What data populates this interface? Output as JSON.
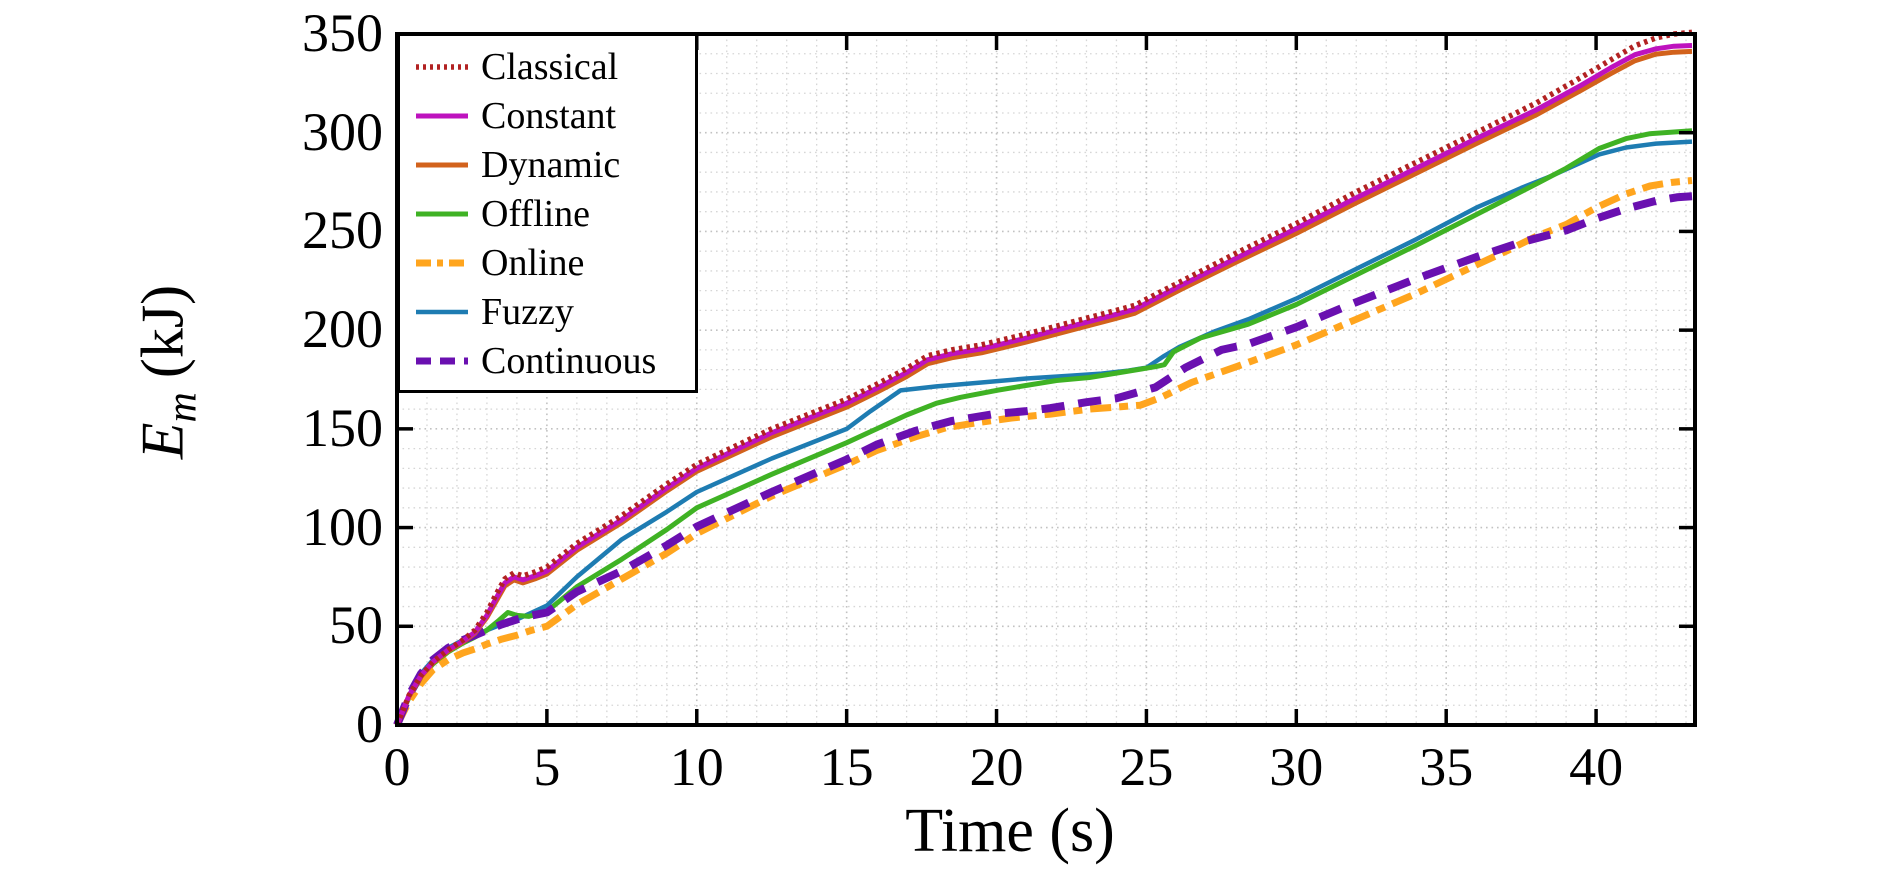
{
  "chart_data": {
    "type": "line",
    "title": "",
    "xlabel": "Time (s)",
    "ylabel_var": "E",
    "ylabel_sub": "m",
    "ylabel_unit": "(kJ)",
    "xlim": [
      0,
      43.3
    ],
    "ylim": [
      0,
      350
    ],
    "xticks": [
      0,
      5,
      10,
      15,
      20,
      25,
      30,
      35,
      40
    ],
    "yticks": [
      0,
      50,
      100,
      150,
      200,
      250,
      300,
      350
    ],
    "x_minor_step": 1,
    "y_minor_step": 10,
    "grid": "dotted",
    "legend_position": "top-left",
    "draw_order": [
      "Fuzzy",
      "Offline",
      "Online",
      "Continuous",
      "Dynamic",
      "Constant",
      "Classical"
    ],
    "series": [
      {
        "name": "Classical",
        "color": "#B22222",
        "style": "dotted",
        "width": 5.5,
        "points": [
          [
            0,
            0
          ],
          [
            0.4,
            15
          ],
          [
            0.8,
            25
          ],
          [
            1.2,
            32
          ],
          [
            1.7,
            38
          ],
          [
            2.2,
            43
          ],
          [
            2.6,
            48
          ],
          [
            3,
            57
          ],
          [
            3.3,
            66
          ],
          [
            3.6,
            74
          ],
          [
            3.9,
            77
          ],
          [
            4.2,
            75.5
          ],
          [
            4.6,
            77.5
          ],
          [
            5,
            80
          ],
          [
            6,
            92
          ],
          [
            7.5,
            106
          ],
          [
            9,
            122
          ],
          [
            10,
            132
          ],
          [
            12.5,
            150
          ],
          [
            15,
            165
          ],
          [
            16,
            172.5
          ],
          [
            17,
            180.5
          ],
          [
            17.7,
            187
          ],
          [
            18.5,
            190
          ],
          [
            19.5,
            192.5
          ],
          [
            21,
            198
          ],
          [
            22.5,
            204
          ],
          [
            24,
            210
          ],
          [
            24.6,
            212.5
          ],
          [
            25.3,
            218
          ],
          [
            26.2,
            225
          ],
          [
            28,
            239
          ],
          [
            30,
            254
          ],
          [
            32,
            270
          ],
          [
            34,
            285
          ],
          [
            36,
            300
          ],
          [
            38,
            315
          ],
          [
            39.5,
            328
          ],
          [
            40.5,
            337
          ],
          [
            41.3,
            344
          ],
          [
            42,
            348
          ],
          [
            42.6,
            350
          ],
          [
            43.2,
            350.8
          ]
        ]
      },
      {
        "name": "Constant",
        "color": "#BE12BE",
        "style": "solid",
        "width": 5,
        "points": [
          [
            0,
            0
          ],
          [
            0.4,
            15
          ],
          [
            0.8,
            25
          ],
          [
            1.2,
            32
          ],
          [
            1.7,
            38
          ],
          [
            2.2,
            42.5
          ],
          [
            2.6,
            47
          ],
          [
            3,
            55.5
          ],
          [
            3.3,
            64
          ],
          [
            3.6,
            72
          ],
          [
            3.9,
            75
          ],
          [
            4.2,
            73.5
          ],
          [
            4.6,
            75.5
          ],
          [
            5,
            78
          ],
          [
            6,
            90
          ],
          [
            7.5,
            104
          ],
          [
            9,
            120
          ],
          [
            10,
            130
          ],
          [
            12.5,
            148
          ],
          [
            15,
            163
          ],
          [
            16,
            170.5
          ],
          [
            17,
            178.5
          ],
          [
            17.7,
            185
          ],
          [
            18.5,
            188
          ],
          [
            19.5,
            190.5
          ],
          [
            21,
            196
          ],
          [
            22.5,
            202
          ],
          [
            24,
            208
          ],
          [
            24.6,
            210.5
          ],
          [
            25.3,
            216
          ],
          [
            26.2,
            223
          ],
          [
            28,
            236.5
          ],
          [
            30,
            251.5
          ],
          [
            32,
            267
          ],
          [
            34,
            282
          ],
          [
            36,
            297
          ],
          [
            38,
            311.5
          ],
          [
            39.5,
            324
          ],
          [
            40.5,
            333
          ],
          [
            41.3,
            339.5
          ],
          [
            42,
            342.5
          ],
          [
            42.6,
            343.8
          ],
          [
            43.2,
            344.2
          ]
        ]
      },
      {
        "name": "Dynamic",
        "color": "#D2621C",
        "style": "solid",
        "width": 5,
        "points": [
          [
            0,
            0
          ],
          [
            0.4,
            14.5
          ],
          [
            0.8,
            24.5
          ],
          [
            1.2,
            31.5
          ],
          [
            1.7,
            37.5
          ],
          [
            2.2,
            42
          ],
          [
            2.6,
            46.5
          ],
          [
            3,
            54.5
          ],
          [
            3.3,
            62.5
          ],
          [
            3.6,
            70.5
          ],
          [
            3.9,
            73.5
          ],
          [
            4.2,
            72
          ],
          [
            4.6,
            74
          ],
          [
            5,
            76.5
          ],
          [
            6,
            88.5
          ],
          [
            7.5,
            102.5
          ],
          [
            9,
            118.5
          ],
          [
            10,
            128.5
          ],
          [
            12.5,
            146
          ],
          [
            15,
            161
          ],
          [
            16,
            168.5
          ],
          [
            17,
            176.5
          ],
          [
            17.7,
            183
          ],
          [
            18.5,
            186
          ],
          [
            19.5,
            188.5
          ],
          [
            21,
            194
          ],
          [
            22.5,
            200
          ],
          [
            24,
            206
          ],
          [
            24.6,
            208.5
          ],
          [
            25.3,
            214
          ],
          [
            26.2,
            221
          ],
          [
            28,
            234.5
          ],
          [
            30,
            249
          ],
          [
            32,
            264.5
          ],
          [
            34,
            279.5
          ],
          [
            36,
            294.5
          ],
          [
            38,
            309
          ],
          [
            39.5,
            321.5
          ],
          [
            40.5,
            330
          ],
          [
            41.3,
            336.5
          ],
          [
            42,
            339.8
          ],
          [
            42.6,
            340.8
          ],
          [
            43.2,
            341.2
          ]
        ]
      },
      {
        "name": "Offline",
        "color": "#3FB224",
        "style": "solid",
        "width": 5,
        "points": [
          [
            0,
            0
          ],
          [
            0.4,
            14
          ],
          [
            0.8,
            24
          ],
          [
            1.2,
            31
          ],
          [
            1.7,
            37
          ],
          [
            2.2,
            41.5
          ],
          [
            2.6,
            44.5
          ],
          [
            3,
            48
          ],
          [
            3.4,
            53
          ],
          [
            3.7,
            57
          ],
          [
            4,
            55.5
          ],
          [
            4.4,
            55
          ],
          [
            5,
            57.5
          ],
          [
            6,
            70
          ],
          [
            7.5,
            84
          ],
          [
            9,
            99
          ],
          [
            10,
            110
          ],
          [
            12.5,
            127
          ],
          [
            15,
            143
          ],
          [
            16,
            150
          ],
          [
            17,
            157
          ],
          [
            18,
            163
          ],
          [
            18.8,
            166
          ],
          [
            20,
            169.5
          ],
          [
            21,
            172
          ],
          [
            22,
            174.5
          ],
          [
            23.1,
            176
          ],
          [
            24.3,
            179
          ],
          [
            25.3,
            181.5
          ],
          [
            25.6,
            182.5
          ],
          [
            25.9,
            189
          ],
          [
            26.8,
            196
          ],
          [
            28.4,
            203
          ],
          [
            30,
            213
          ],
          [
            32,
            228
          ],
          [
            34,
            243
          ],
          [
            36,
            258.5
          ],
          [
            38,
            274
          ],
          [
            39,
            282
          ],
          [
            40.1,
            292
          ],
          [
            41,
            297
          ],
          [
            41.8,
            299.5
          ],
          [
            43.2,
            301
          ]
        ]
      },
      {
        "name": "Online",
        "color": "#FFA51E",
        "style": "dashdot",
        "width": 7,
        "points": [
          [
            0,
            0
          ],
          [
            0.4,
            12
          ],
          [
            0.8,
            21
          ],
          [
            1.2,
            28
          ],
          [
            1.7,
            33
          ],
          [
            2.2,
            36.5
          ],
          [
            2.6,
            38.5
          ],
          [
            3,
            41
          ],
          [
            3.5,
            43.5
          ],
          [
            4,
            45.5
          ],
          [
            4.5,
            48
          ],
          [
            5,
            50
          ],
          [
            6,
            61
          ],
          [
            7.5,
            74
          ],
          [
            9,
            87
          ],
          [
            10,
            97
          ],
          [
            12.5,
            116
          ],
          [
            15,
            132
          ],
          [
            16,
            139
          ],
          [
            17.3,
            146
          ],
          [
            18.3,
            150.5
          ],
          [
            19.3,
            153
          ],
          [
            20.5,
            155.5
          ],
          [
            21.8,
            157.5
          ],
          [
            23.1,
            160
          ],
          [
            24,
            161
          ],
          [
            24.8,
            162
          ],
          [
            25.5,
            166
          ],
          [
            26.5,
            173.5
          ],
          [
            28,
            181.5
          ],
          [
            30,
            192.5
          ],
          [
            32,
            205.5
          ],
          [
            34,
            218.5
          ],
          [
            36,
            233
          ],
          [
            37,
            240
          ],
          [
            38,
            247.5
          ],
          [
            39,
            253.5
          ],
          [
            40,
            262
          ],
          [
            41,
            269
          ],
          [
            41.8,
            273
          ],
          [
            42.5,
            274.8
          ],
          [
            43.2,
            275.8
          ]
        ]
      },
      {
        "name": "Fuzzy",
        "color": "#1E7CB2",
        "style": "solid",
        "width": 4.5,
        "points": [
          [
            0,
            0
          ],
          [
            0.4,
            15
          ],
          [
            0.8,
            26
          ],
          [
            1.2,
            33
          ],
          [
            1.7,
            39
          ],
          [
            2.2,
            43
          ],
          [
            2.6,
            45.5
          ],
          [
            3,
            48
          ],
          [
            3.5,
            51
          ],
          [
            4,
            53.5
          ],
          [
            4.5,
            57
          ],
          [
            5,
            60.5
          ],
          [
            6,
            75
          ],
          [
            7.5,
            94
          ],
          [
            9,
            108
          ],
          [
            10,
            118
          ],
          [
            12.5,
            135
          ],
          [
            15,
            150
          ],
          [
            15.8,
            159
          ],
          [
            16.8,
            169.5
          ],
          [
            18,
            171.5
          ],
          [
            19.5,
            173.5
          ],
          [
            21,
            175.5
          ],
          [
            22.5,
            177
          ],
          [
            23.5,
            178
          ],
          [
            24.4,
            179.5
          ],
          [
            25,
            181
          ],
          [
            25.6,
            187
          ],
          [
            26.1,
            191.5
          ],
          [
            27.3,
            199.5
          ],
          [
            28.4,
            205.5
          ],
          [
            30,
            216
          ],
          [
            32,
            231
          ],
          [
            34,
            246
          ],
          [
            36,
            262
          ],
          [
            37.5,
            272
          ],
          [
            38.5,
            278
          ],
          [
            40.1,
            289
          ],
          [
            41,
            292.5
          ],
          [
            42,
            294.5
          ],
          [
            43.2,
            295.5
          ]
        ]
      },
      {
        "name": "Continuous",
        "color": "#6A10B0",
        "style": "dashed",
        "width": 8,
        "points": [
          [
            0,
            0
          ],
          [
            0.4,
            15
          ],
          [
            0.8,
            26
          ],
          [
            1.2,
            33
          ],
          [
            1.7,
            39
          ],
          [
            2.2,
            43
          ],
          [
            2.6,
            45.5
          ],
          [
            3,
            48
          ],
          [
            3.5,
            51
          ],
          [
            4,
            53.5
          ],
          [
            4.5,
            55.5
          ],
          [
            5,
            57
          ],
          [
            6,
            67.5
          ],
          [
            7.5,
            78
          ],
          [
            9,
            91
          ],
          [
            10,
            100.5
          ],
          [
            12.5,
            118
          ],
          [
            15,
            134.5
          ],
          [
            16,
            142
          ],
          [
            17.3,
            149
          ],
          [
            18.5,
            154
          ],
          [
            19.9,
            157.5
          ],
          [
            21,
            159
          ],
          [
            21.8,
            160.5
          ],
          [
            23,
            163.5
          ],
          [
            24,
            165.5
          ],
          [
            25.3,
            171
          ],
          [
            26.3,
            181
          ],
          [
            27.5,
            190
          ],
          [
            28.4,
            193
          ],
          [
            30,
            201.5
          ],
          [
            31.8,
            213
          ],
          [
            34,
            226
          ],
          [
            36,
            237
          ],
          [
            37.5,
            244.5
          ],
          [
            39,
            250.5
          ],
          [
            40,
            256.5
          ],
          [
            41,
            261.5
          ],
          [
            42,
            265.5
          ],
          [
            42.7,
            267.3
          ],
          [
            43.2,
            267.8
          ]
        ]
      }
    ]
  }
}
